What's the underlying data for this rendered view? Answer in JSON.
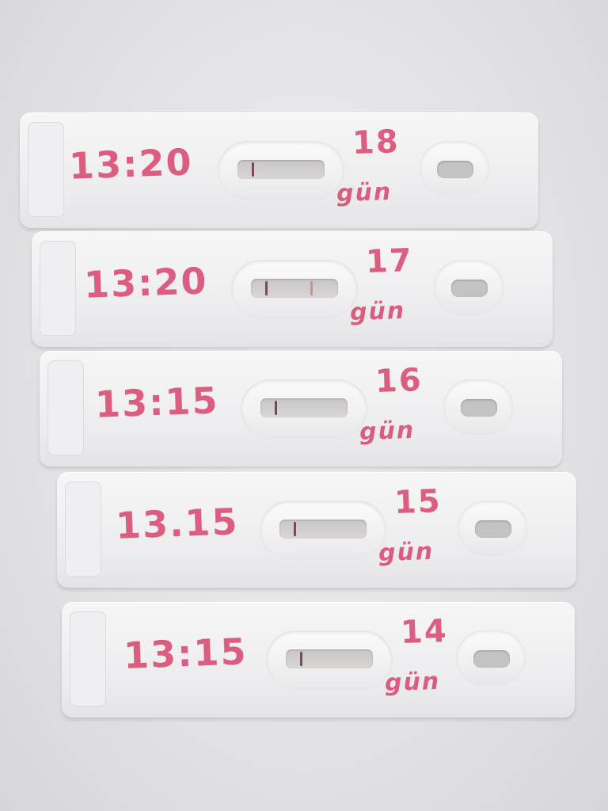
{
  "strips": [
    {
      "time": "13:20",
      "day": "18",
      "unit": "gün",
      "control_line": true,
      "test_line": false
    },
    {
      "time": "13:20",
      "day": "17",
      "unit": "gün",
      "control_line": true,
      "test_line": true
    },
    {
      "time": "13:15",
      "day": "16",
      "unit": "gün",
      "control_line": true,
      "test_line": false
    },
    {
      "time": "13.15",
      "day": "15",
      "unit": "gün",
      "control_line": true,
      "test_line": false
    },
    {
      "time": "13:15",
      "day": "14",
      "unit": "gün",
      "control_line": true,
      "test_line": false
    }
  ],
  "colors": {
    "ink": "#d8456e",
    "control_line": "#7a4a55",
    "test_line": "#b89a9e",
    "background": "#e4e4e6"
  }
}
